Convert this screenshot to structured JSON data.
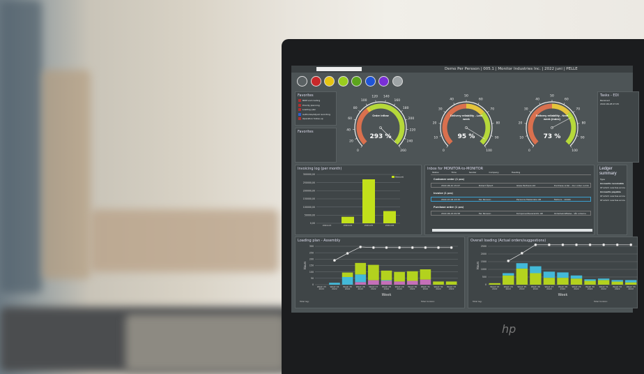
{
  "window": {
    "title": "Demo Per Persson | 005.1 | Monitor Industries Inc. | 2022 juni | PELLE"
  },
  "toolbar": {
    "icons": [
      {
        "name": "menu-icon",
        "color": "#5a6163"
      },
      {
        "name": "factory-icon",
        "color": "#c7282a"
      },
      {
        "name": "cart-icon",
        "color": "#e6c413"
      },
      {
        "name": "envelope-icon",
        "color": "#9acd1e"
      },
      {
        "name": "plant-icon",
        "color": "#5ca41c"
      },
      {
        "name": "clock-icon",
        "color": "#1f54d6"
      },
      {
        "name": "calculator-icon",
        "color": "#7a2fd6"
      },
      {
        "name": "link-icon",
        "color": "#9ea4a6"
      }
    ]
  },
  "favorites": {
    "title": "Favorites",
    "items": [
      "BOM and routing",
      "Priority planning",
      "Loading plan",
      "Authorize/Adjust recording",
      "Operation follow-up"
    ]
  },
  "favorites2": {
    "title": "Favorites"
  },
  "gauges": [
    {
      "label": "Order inflow",
      "value_text": "293 %",
      "value": 293,
      "max": 260,
      "ticks": [
        0,
        20,
        40,
        60,
        80,
        100,
        120,
        140,
        160,
        180,
        200,
        220,
        240,
        260
      ],
      "bands": [
        {
          "from": 0,
          "to": 95,
          "color": "#d9704e"
        },
        {
          "from": 95,
          "to": 103,
          "color": "#e4c43c"
        },
        {
          "from": 103,
          "to": 260,
          "color": "#b6d93a"
        }
      ]
    },
    {
      "label": "Delivery reliability - Last week",
      "value_text": "95 %",
      "value": 95,
      "max": 100,
      "ticks": [
        0,
        10,
        20,
        30,
        40,
        50,
        60,
        70,
        80,
        90,
        100
      ],
      "bands": [
        {
          "from": 0,
          "to": 50,
          "color": "#d9704e"
        },
        {
          "from": 50,
          "to": 68,
          "color": "#e4c43c"
        },
        {
          "from": 68,
          "to": 100,
          "color": "#b6d93a"
        }
      ]
    },
    {
      "label": "Delivery reliability - Next week (index)",
      "value_text": "73 %",
      "value": 73,
      "max": 100,
      "ticks": [
        0,
        10,
        20,
        30,
        40,
        50,
        60,
        70,
        80,
        90,
        100
      ],
      "bands": [
        {
          "from": 0,
          "to": 50,
          "color": "#d9704e"
        },
        {
          "from": 50,
          "to": 68,
          "color": "#e4c43c"
        },
        {
          "from": 68,
          "to": 100,
          "color": "#b6d93a"
        }
      ]
    }
  ],
  "tasks": {
    "title": "Tasks - EDI",
    "col": "Received",
    "row": "2022-06-28 07:05"
  },
  "inbox": {
    "title": "Inbox for MONITOR-to-MONITOR",
    "columns": [
      "Status",
      "Time",
      "Sender",
      "Company",
      "Heading"
    ],
    "groups": [
      {
        "label": "Customer order (1 pcs)",
        "row": [
          "2022-06-10 15:07",
          "Robert Öjbert",
          "Glass Partners Ltd",
          "Purchase order - Our order numb"
        ]
      },
      {
        "label": "Invoice (1 pcs)",
        "row": [
          "2022-07-04 13:33",
          "Per Persson",
          "Perssons Mekaniska AB",
          "Faktura - 10404"
        ]
      },
      {
        "label": "Purchase order (1 pcs)",
        "row": [
          "2022-06-16 09:58",
          "Per Persson",
          "Komponentleverantör AB",
          "Orderbekräftelse - Vår ordernu"
        ]
      }
    ]
  },
  "ledger": {
    "title": "Ledger summary",
    "items": [
      "Type",
      "Accounts receivable",
      "Of which overdue accou",
      "Accounts payable",
      "Of which overdue accou",
      "Of which overdue accou"
    ]
  },
  "chart_data": [
    {
      "type": "bar",
      "title": "Invoicing log (per month)",
      "categories": [
        "2022-03",
        "2022-04",
        "2022-05",
        "2022-06"
      ],
      "series": [
        {
          "name": "Amount",
          "values": [
            0,
            40000,
            270000,
            75000
          ]
        }
      ],
      "yticks": [
        "0,00",
        "50000,00",
        "100000,00",
        "150000,00",
        "200000,00",
        "250000,00",
        "300000,00"
      ],
      "ylim": [
        0,
        300000
      ],
      "legend": "top-right",
      "colors": [
        "#c2e01a"
      ]
    },
    {
      "type": "bar",
      "title": "Loading plan - Assembly",
      "xlabel": "Week",
      "ylabel": "Hours",
      "stacked": true,
      "ylim": [
        0,
        300
      ],
      "yticks": [
        0,
        50,
        100,
        150,
        200,
        250,
        300
      ],
      "categories": [
        "Week 23 2022",
        "Week 24 2022",
        "Week 25 2022",
        "Week 26 2022",
        "Week 27 2022",
        "Week 28 2022",
        "Week 29 2022",
        "Week 30 2022",
        "Week 31 2022",
        "Week 32 2022",
        "Week 33 2022"
      ],
      "series": [
        {
          "values": [
            0,
            0,
            0,
            20,
            35,
            30,
            25,
            30,
            40,
            0,
            0
          ],
          "color": "#c56fb8"
        },
        {
          "values": [
            0,
            15,
            60,
            60,
            0,
            5,
            0,
            0,
            0,
            0,
            0
          ],
          "color": "#43b9d8"
        },
        {
          "values": [
            0,
            0,
            35,
            90,
            120,
            75,
            75,
            75,
            80,
            25,
            25
          ],
          "color": "#b3d21e"
        }
      ],
      "line": [
        null,
        190,
        245,
        295,
        290,
        290,
        290,
        290,
        290,
        290,
        290
      ],
      "footer_left": "Total lag:",
      "footer_right": "Total horizon:"
    },
    {
      "type": "bar",
      "title": "Overall loading (Actual orders/suggestions)",
      "xlabel": "Week",
      "ylabel": "Hours",
      "stacked": true,
      "ylim": [
        0,
        2500
      ],
      "yticks": [
        0,
        500,
        1000,
        1500,
        2000,
        2500
      ],
      "categories": [
        "Week 23 2022",
        "Week 24 2022",
        "Week 25 2022",
        "Week 26 2022",
        "Week 27 2022",
        "Week 28 2022",
        "Week 29 2022",
        "Week 30 2022",
        "Week 31 2022",
        "Week 32 2022",
        "Week 33 2022"
      ],
      "series": [
        {
          "values": [
            100,
            600,
            1050,
            750,
            450,
            450,
            400,
            250,
            300,
            200,
            150
          ],
          "color": "#b3d21e"
        },
        {
          "values": [
            0,
            150,
            350,
            450,
            400,
            350,
            200,
            100,
            100,
            100,
            150
          ],
          "color": "#43b9d8"
        }
      ],
      "line": [
        null,
        1550,
        2050,
        2600,
        2600,
        2600,
        2600,
        2600,
        2600,
        2600,
        2600
      ],
      "footer_left": "Total lag:",
      "footer_right": "Total horizon:"
    }
  ],
  "laptop": {
    "logo": "hp"
  }
}
